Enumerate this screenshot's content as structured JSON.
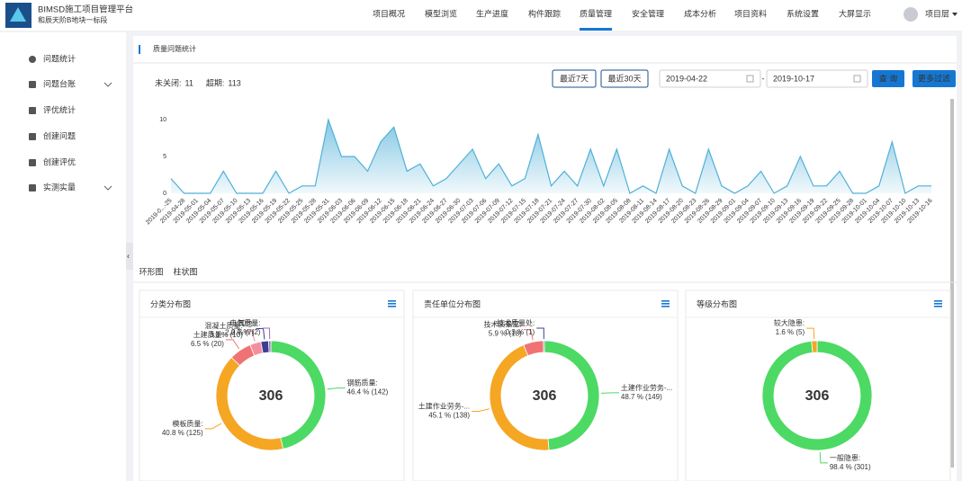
{
  "header": {
    "title": "BIMSD施工项目管理平台",
    "subtitle": "和辰天阶B地块一标段",
    "nav": [
      "项目概况",
      "模型浏览",
      "生产进度",
      "构件跟踪",
      "质量管理",
      "安全管理",
      "成本分析",
      "项目资料",
      "系统设置",
      "大屏显示"
    ],
    "active_nav": 4,
    "user": "项目层"
  },
  "sidebar": {
    "items": [
      "问题统计",
      "问题台账",
      "评优统计",
      "创建问题",
      "创建评优",
      "实测实量"
    ],
    "expandable": [
      false,
      true,
      false,
      false,
      false,
      true
    ]
  },
  "breadcrumb": "质量问题统计",
  "stats": [
    {
      "label": "未关闭:",
      "value": 11,
      "color": "#e8a317"
    },
    {
      "label": "超期:",
      "value": 113,
      "color": "#c0392b"
    }
  ],
  "filters": {
    "buttons": [
      "最近7天",
      "最近30天"
    ],
    "start_date": "2019-04-22",
    "end_date": "2019-10-17",
    "separator": "-",
    "query": "查 询",
    "more": "更多过滤"
  },
  "tabs": [
    "环形图",
    "柱状图"
  ],
  "chart_data": [
    {
      "type": "line",
      "color": "#4fb0d8",
      "grid": false,
      "ylim": [
        0,
        11
      ],
      "yticks": [
        0,
        5,
        10
      ],
      "categories": [
        "2019-0...-25",
        "2019-04-28",
        "2019-05-01",
        "2019-05-04",
        "2019-05-07",
        "2019-05-10",
        "2019-05-13",
        "2019-05-16",
        "2019-05-19",
        "2019-05-22",
        "2019-05-25",
        "2019-05-28",
        "2019-05-31",
        "2019-06-03",
        "2019-06-06",
        "2019-06-09",
        "2019-06-12",
        "2019-06-15",
        "2019-06-18",
        "2019-06-21",
        "2019-06-24",
        "2019-06-27",
        "2019-06-30",
        "2019-07-03",
        "2019-07-06",
        "2019-07-09",
        "2019-07-12",
        "2019-07-15",
        "2019-07-18",
        "2019-07-21",
        "2019-07-24",
        "2019-07-27",
        "2019-07-30",
        "2019-08-02",
        "2019-08-05",
        "2019-08-08",
        "2019-08-11",
        "2019-08-14",
        "2019-08-17",
        "2019-08-20",
        "2019-08-23",
        "2019-08-26",
        "2019-08-29",
        "2019-09-01",
        "2019-09-04",
        "2019-09-07",
        "2019-09-10",
        "2019-09-13",
        "2019-09-16",
        "2019-09-19",
        "2019-09-22",
        "2019-09-25",
        "2019-09-28",
        "2019-10-01",
        "2019-10-04",
        "2019-10-07",
        "2019-10-10",
        "2019-10-13",
        "2019-10-16"
      ],
      "values": [
        2,
        0,
        0,
        0,
        3,
        0,
        0,
        0,
        3,
        0,
        1,
        1,
        10,
        5,
        5,
        3,
        7,
        9,
        3,
        4,
        1,
        2,
        4,
        6,
        2,
        4,
        1,
        2,
        8,
        1,
        3,
        1,
        6,
        1,
        6,
        0,
        1,
        0,
        6,
        1,
        0,
        6,
        1,
        0,
        1,
        3,
        0,
        1,
        5,
        1,
        1,
        3,
        0,
        0,
        1,
        7,
        0,
        1,
        1
      ]
    },
    {
      "type": "pie",
      "title": "分类分布图",
      "total": 306,
      "categories": [
        "钢筋质量:",
        "模板质量:",
        "土建质量:",
        "混凝土质量:",
        "其他:",
        "电气质量:"
      ],
      "values": [
        142,
        125,
        20,
        10,
        7,
        2
      ],
      "value_labels": [
        "46.4 % (142)",
        "40.8 % (125)",
        "6.5 % (20)",
        "3.3 % (10)",
        "2.3 % (7)",
        "0.7 % (2)"
      ],
      "colors": [
        "#4cd964",
        "#f5a623",
        "#f07373",
        "#f58fa0",
        "#3d3f8f",
        "#9b6fc2"
      ]
    },
    {
      "type": "pie",
      "title": "责任单位分布图",
      "total": 306,
      "categories": [
        "土建作业劳务-...",
        "土建作业劳务-...",
        "技术质量室:",
        "技术质量处:"
      ],
      "values": [
        149,
        138,
        18,
        1
      ],
      "value_labels": [
        "48.7 % (149)",
        "45.1 % (138)",
        "5.9 % (18)",
        "0.3 % (1)"
      ],
      "colors": [
        "#4cd964",
        "#f5a623",
        "#f07373",
        "#3d3f8f"
      ]
    },
    {
      "type": "pie",
      "title": "等级分布图",
      "total": 306,
      "categories": [
        "一般隐患:",
        "较大隐患:"
      ],
      "values": [
        301,
        5
      ],
      "value_labels": [
        "98.4 % (301)",
        "1.6 % (5)"
      ],
      "colors": [
        "#4cd964",
        "#f5a623"
      ]
    }
  ]
}
